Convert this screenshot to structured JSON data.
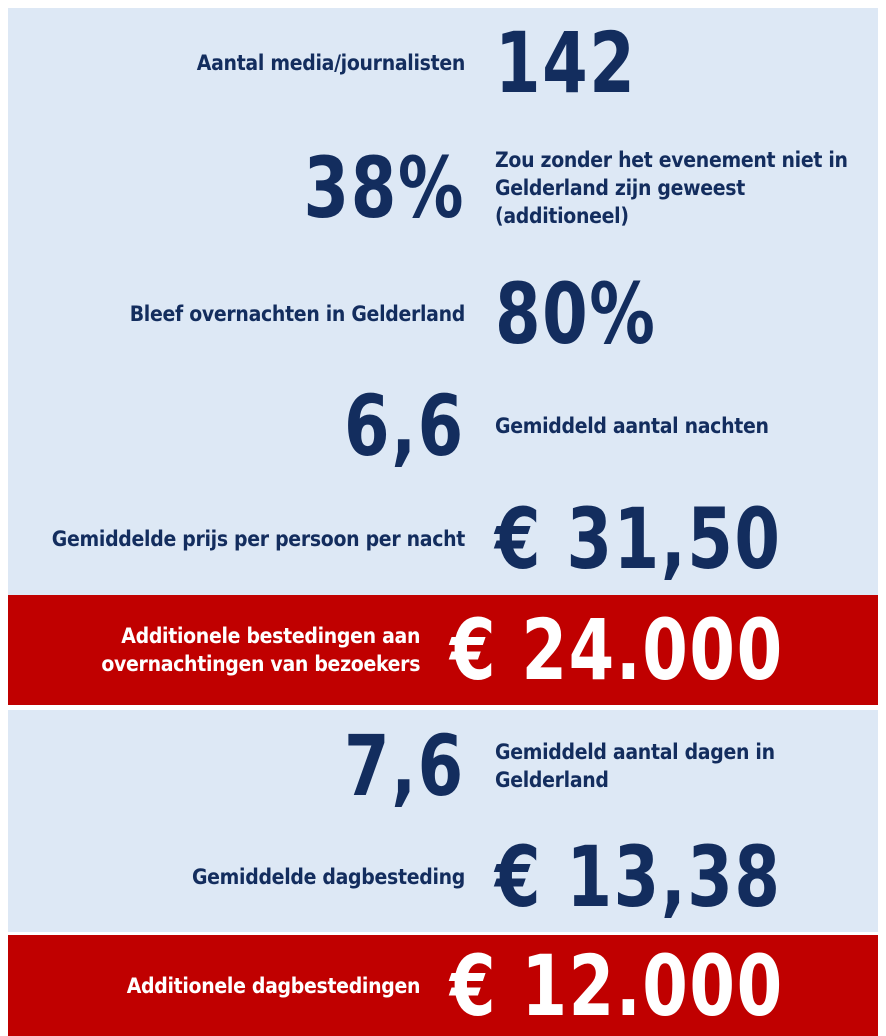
{
  "rows": [
    {
      "label": "Aantal media/journalisten",
      "value": "142",
      "number_first": false,
      "highlight": false
    },
    {
      "label": "Zou zonder het evenement niet in Gelderland zijn geweest (additioneel)",
      "value": "38%",
      "number_first": true,
      "highlight": false
    },
    {
      "label": "Bleef overnachten in Gelderland",
      "value": "80%",
      "number_first": false,
      "highlight": false
    },
    {
      "label": "Gemiddeld aantal nachten",
      "value": "6,6",
      "number_first": true,
      "highlight": false
    },
    {
      "label": "Gemiddelde prijs per persoon per nacht",
      "value": "€ 31,50",
      "number_first": false,
      "highlight": false
    },
    {
      "label": "Additionele bestedingen aan overnachtingen van bezoekers",
      "value": "€ 24.000",
      "number_first": false,
      "highlight": true
    },
    {
      "label": "Gemiddeld aantal dagen in Gelderland",
      "value": "7,6",
      "number_first": true,
      "highlight": false
    },
    {
      "label": "Gemiddelde dagbesteding",
      "value": "€ 13,38",
      "number_first": false,
      "highlight": false
    },
    {
      "label": "Additionele dagbestedingen",
      "value": "€ 12.000",
      "number_first": false,
      "highlight": true
    }
  ]
}
